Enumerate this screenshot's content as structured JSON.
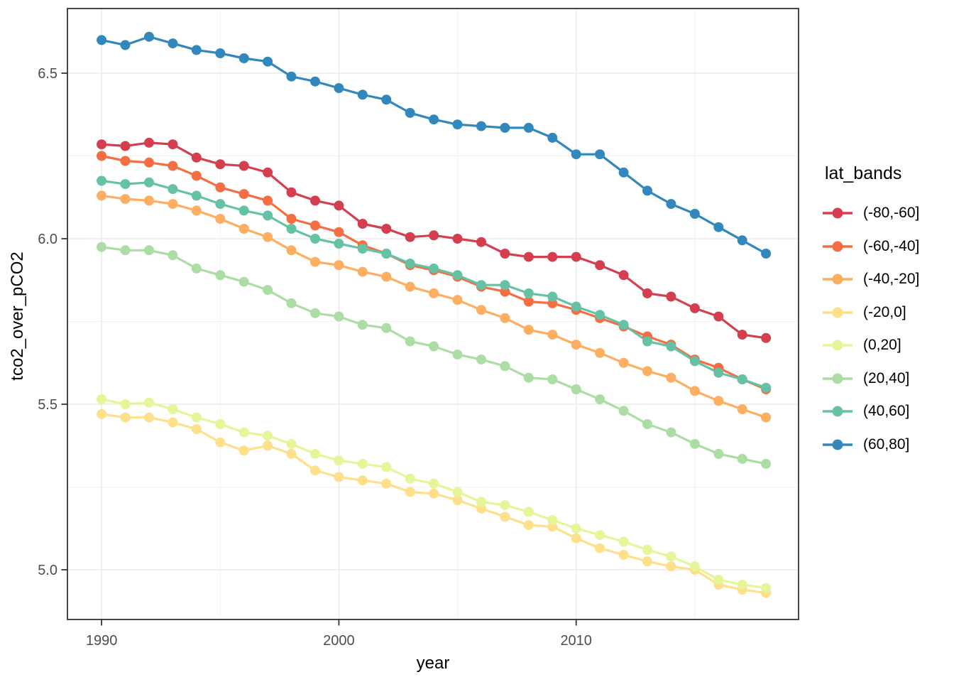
{
  "figure": {
    "background": "#ffffff",
    "panel_border_color": "#333333",
    "grid_major_color": "#ebebeb",
    "grid_minor_color": "#f2f2f2",
    "tick_color": "#333333",
    "tick_label_color": "#4d4d4d"
  },
  "axes": {
    "x": {
      "title": "year",
      "tick_labels": [
        "1990",
        "2000",
        "2010"
      ],
      "ticks": [
        1990,
        2000,
        2010
      ],
      "minor_ticks": [
        1995,
        2005,
        2015
      ]
    },
    "y": {
      "title": "tco2_over_pCO2",
      "tick_labels": [
        "5.0",
        "5.5",
        "6.0",
        "6.5"
      ],
      "ticks": [
        5.0,
        5.5,
        6.0,
        6.5
      ],
      "minor_ticks": [
        5.25,
        5.75,
        6.25
      ]
    }
  },
  "legend": {
    "title": "lat_bands",
    "entries": [
      "(-80,-60]",
      "(-60,-40]",
      "(-40,-20]",
      "(-20,0]",
      "(0,20]",
      "(20,40]",
      "(40,60]",
      "(60,80]"
    ]
  },
  "chart_data": {
    "type": "line",
    "title": "",
    "xlabel": "year",
    "ylabel": "tco2_over_pCO2",
    "xlim": [
      1988.6,
      2019.4
    ],
    "ylim": [
      4.84,
      6.7
    ],
    "grid": true,
    "legend_position": "right",
    "marker": "circle",
    "x": [
      1990,
      1991,
      1992,
      1993,
      1994,
      1995,
      1996,
      1997,
      1998,
      1999,
      2000,
      2001,
      2002,
      2003,
      2004,
      2005,
      2006,
      2007,
      2008,
      2009,
      2010,
      2011,
      2012,
      2013,
      2014,
      2015,
      2016,
      2017,
      2018
    ],
    "series": [
      {
        "name": "(-80,-60]",
        "color": "#d53e4f",
        "values": [
          6.285,
          6.28,
          6.29,
          6.285,
          6.245,
          6.225,
          6.22,
          6.2,
          6.14,
          6.115,
          6.1,
          6.045,
          6.03,
          6.005,
          6.01,
          6.0,
          5.99,
          5.955,
          5.945,
          5.945,
          5.945,
          5.92,
          5.89,
          5.835,
          5.825,
          5.79,
          5.765,
          5.71,
          5.7
        ]
      },
      {
        "name": "(-60,-40]",
        "color": "#f46d43",
        "values": [
          6.25,
          6.235,
          6.23,
          6.22,
          6.19,
          6.155,
          6.135,
          6.115,
          6.06,
          6.04,
          6.02,
          5.98,
          5.955,
          5.92,
          5.905,
          5.885,
          5.855,
          5.84,
          5.81,
          5.805,
          5.785,
          5.76,
          5.735,
          5.705,
          5.68,
          5.635,
          5.61,
          5.575,
          5.545
        ]
      },
      {
        "name": "(-40,-20]",
        "color": "#fdae61",
        "values": [
          6.13,
          6.12,
          6.115,
          6.105,
          6.085,
          6.06,
          6.03,
          6.005,
          5.965,
          5.93,
          5.92,
          5.9,
          5.885,
          5.855,
          5.835,
          5.815,
          5.785,
          5.76,
          5.725,
          5.71,
          5.68,
          5.655,
          5.625,
          5.6,
          5.58,
          5.54,
          5.51,
          5.485,
          5.46
        ]
      },
      {
        "name": "(-20,0]",
        "color": "#fee08b",
        "values": [
          5.47,
          5.46,
          5.46,
          5.445,
          5.425,
          5.385,
          5.36,
          5.375,
          5.35,
          5.3,
          5.28,
          5.27,
          5.26,
          5.235,
          5.23,
          5.21,
          5.185,
          5.16,
          5.135,
          5.13,
          5.095,
          5.065,
          5.045,
          5.025,
          5.01,
          5.0,
          4.955,
          4.94,
          4.93
        ]
      },
      {
        "name": "(0,20]",
        "color": "#e6f598",
        "values": [
          5.515,
          5.5,
          5.505,
          5.485,
          5.46,
          5.44,
          5.415,
          5.405,
          5.38,
          5.35,
          5.33,
          5.32,
          5.31,
          5.275,
          5.26,
          5.235,
          5.205,
          5.195,
          5.175,
          5.15,
          5.125,
          5.105,
          5.085,
          5.06,
          5.04,
          5.01,
          4.97,
          4.955,
          4.945
        ]
      },
      {
        "name": "(20,40]",
        "color": "#abdda4",
        "values": [
          5.975,
          5.965,
          5.965,
          5.95,
          5.91,
          5.89,
          5.87,
          5.845,
          5.805,
          5.775,
          5.765,
          5.74,
          5.73,
          5.69,
          5.675,
          5.65,
          5.635,
          5.615,
          5.58,
          5.575,
          5.545,
          5.515,
          5.48,
          5.44,
          5.415,
          5.38,
          5.35,
          5.335,
          5.32
        ]
      },
      {
        "name": "(40,60]",
        "color": "#66c2a5",
        "values": [
          6.175,
          6.165,
          6.17,
          6.15,
          6.13,
          6.105,
          6.085,
          6.07,
          6.03,
          6.0,
          5.985,
          5.97,
          5.955,
          5.925,
          5.91,
          5.89,
          5.86,
          5.86,
          5.835,
          5.825,
          5.795,
          5.77,
          5.74,
          5.69,
          5.675,
          5.63,
          5.595,
          5.575,
          5.55
        ]
      },
      {
        "name": "(60,80]",
        "color": "#3288bd",
        "values": [
          6.6,
          6.585,
          6.61,
          6.59,
          6.57,
          6.56,
          6.545,
          6.535,
          6.49,
          6.475,
          6.455,
          6.435,
          6.42,
          6.38,
          6.36,
          6.345,
          6.34,
          6.335,
          6.335,
          6.305,
          6.255,
          6.255,
          6.2,
          6.145,
          6.105,
          6.075,
          6.035,
          5.995,
          5.955
        ]
      }
    ]
  }
}
